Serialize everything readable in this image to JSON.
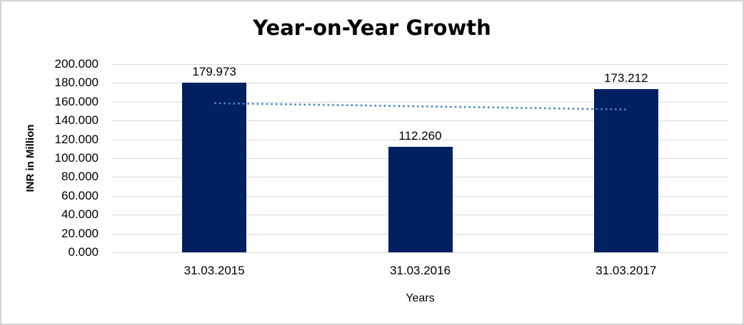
{
  "chart_data": {
    "type": "bar",
    "title": "Year-on-Year Growth",
    "xlabel": "Years",
    "ylabel": "INR in Million",
    "categories": [
      "31.03.2015",
      "31.03.2016",
      "31.03.2017"
    ],
    "values": [
      179.973,
      112.26,
      173.212
    ],
    "value_labels": [
      "179.973",
      "112.260",
      "173.212"
    ],
    "ylim": [
      0,
      200
    ],
    "ytick_step": 20,
    "ytick_labels": [
      "0.000",
      "20.000",
      "40.000",
      "60.000",
      "80.000",
      "100.000",
      "120.000",
      "140.000",
      "160.000",
      "180.000",
      "200.000"
    ],
    "grid": "horizontal",
    "legend": "none",
    "trendline": {
      "style": "dotted",
      "start_value": 158.5,
      "end_value": 151.8
    },
    "colors": {
      "bar": "#002060",
      "trendline": "#4a86c8",
      "gridline": "#d9d9d9",
      "text": "#000000",
      "frame": "#d3d3d3"
    }
  }
}
